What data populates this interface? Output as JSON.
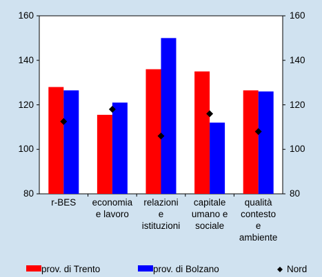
{
  "chart_data": {
    "type": "bar",
    "categories": [
      "r-BES",
      "economia\ne lavoro",
      "relazioni\ne\nistituzioni",
      "capitale\numano e\nsociale",
      "qualità\ncontesto\ne\nambiente"
    ],
    "series": [
      {
        "name": "prov. di Trento",
        "color": "#ff0000",
        "values": [
          128,
          115.5,
          136,
          135,
          126.5
        ]
      },
      {
        "name": "prov. di Bolzano",
        "color": "#0000ff",
        "values": [
          126.5,
          121,
          150,
          112,
          126
        ]
      },
      {
        "name": "Nord",
        "color": "#000000",
        "marker": "diamond",
        "values": [
          112.5,
          118,
          106,
          116,
          108
        ]
      }
    ],
    "ylim": [
      80,
      160
    ],
    "yticks": [
      80,
      100,
      120,
      140,
      160
    ],
    "y2lim": [
      80,
      160
    ],
    "y2ticks": [
      80,
      100,
      120,
      140,
      160
    ]
  }
}
